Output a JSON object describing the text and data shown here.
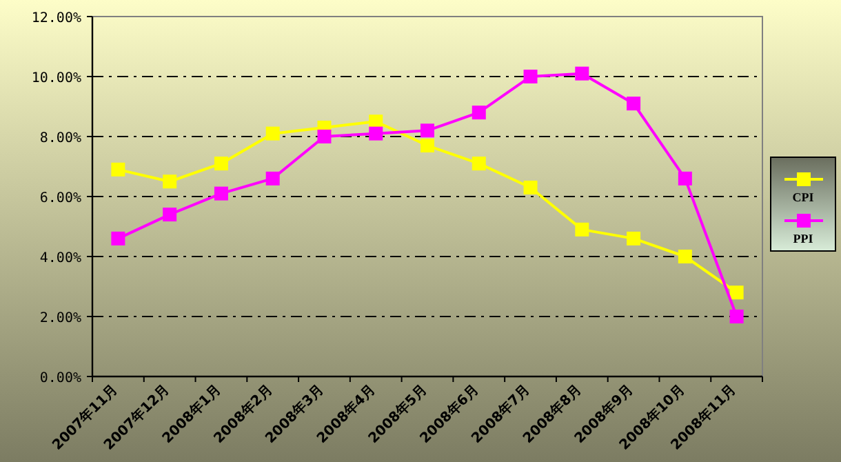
{
  "chart_data": {
    "type": "line",
    "categories": [
      "2007年11月",
      "2007年12月",
      "2008年1月",
      "2008年2月",
      "2008年3月",
      "2008年4月",
      "2008年5月",
      "2008年6月",
      "2008年7月",
      "2008年8月",
      "2008年9月",
      "2008年10月",
      "2008年11月"
    ],
    "series": [
      {
        "name": "CPI",
        "color": "#ffff00",
        "values": [
          6.9,
          6.5,
          7.1,
          8.1,
          8.3,
          8.5,
          7.7,
          7.1,
          6.3,
          4.9,
          4.6,
          4.0,
          2.8
        ]
      },
      {
        "name": "PPI",
        "color": "#ff00ff",
        "values": [
          4.6,
          5.4,
          6.1,
          6.6,
          8.0,
          8.1,
          8.2,
          8.8,
          10.0,
          10.1,
          9.1,
          6.6,
          2.0
        ]
      }
    ],
    "ylim": [
      0,
      12
    ],
    "yticks": [
      {
        "value": 0,
        "label": "0.00%"
      },
      {
        "value": 2,
        "label": "2.00%"
      },
      {
        "value": 4,
        "label": "4.00%"
      },
      {
        "value": 6,
        "label": "6.00%"
      },
      {
        "value": 8,
        "label": "8.00%"
      },
      {
        "value": 10,
        "label": "10.00%"
      },
      {
        "value": 12,
        "label": "12.00%"
      }
    ],
    "grid": "y",
    "legend": "right",
    "marker": "square",
    "line_style": "solid"
  }
}
